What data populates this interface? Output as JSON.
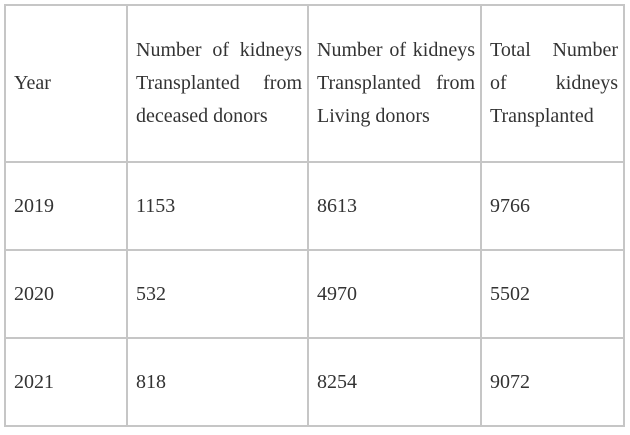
{
  "chart_data": {
    "type": "table",
    "columns": [
      "Year",
      "Number of kidneys Transplanted from deceased donors",
      "Number of kidneys Transplanted from Living donors",
      "Total Number of kidneys Transplanted"
    ],
    "rows": [
      [
        "2019",
        "1153",
        "8613",
        "9766"
      ],
      [
        "2020",
        "532",
        "4970",
        "5502"
      ],
      [
        "2021",
        "818",
        "8254",
        "9072"
      ]
    ]
  },
  "colors": {
    "border": "#c6c6c6",
    "text": "#333333",
    "background": "#ffffff"
  }
}
